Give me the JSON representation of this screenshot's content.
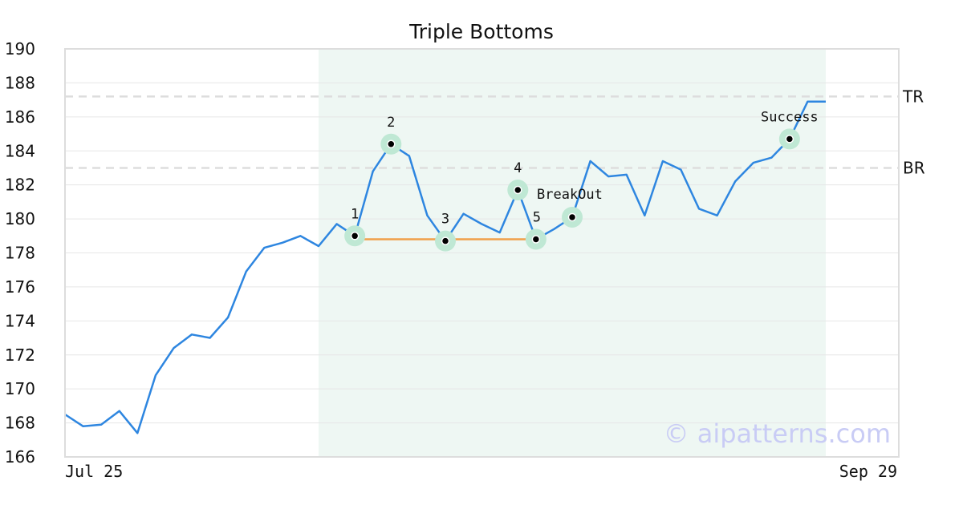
{
  "watermark": "© aipatterns.com",
  "colors": {
    "price_line": "#2e86e0",
    "pattern_shade": "#eef7f3",
    "neckline": "#f0a04a",
    "marker_halo": "#bfe8d4",
    "level_line": "#dddddd",
    "grid": "#e6e6e6",
    "frame": "#dddddd"
  },
  "chart_data": {
    "type": "line",
    "title": "Triple Bottoms",
    "xlabel": "",
    "ylabel": "",
    "x_tick_labels": [
      "Jul 25",
      "Sep 29"
    ],
    "ylim": [
      166,
      190
    ],
    "yticks": [
      166,
      168,
      170,
      172,
      174,
      176,
      178,
      180,
      182,
      184,
      186,
      188,
      190
    ],
    "grid": true,
    "series": [
      {
        "values": [
          168.5,
          167.8,
          167.9,
          168.7,
          167.4,
          170.8,
          172.4,
          173.2,
          173.0,
          174.2,
          176.9,
          178.3,
          178.6,
          179.0,
          178.4,
          179.7,
          179.0,
          182.8,
          184.4,
          183.7,
          180.2,
          178.7,
          180.3,
          179.7,
          179.2,
          181.7,
          178.8,
          179.4,
          180.1,
          183.4,
          182.5,
          182.6,
          180.2,
          183.4,
          182.9,
          180.6,
          180.2,
          182.2,
          183.3,
          183.6,
          184.7,
          186.9,
          186.9
        ]
      }
    ],
    "pattern_region_index": [
      14,
      42
    ],
    "levels": [
      {
        "label": "TR",
        "value": 187.2
      },
      {
        "label": "BR",
        "value": 183.0
      }
    ],
    "neckline": {
      "from_index": 16,
      "to_index": 26,
      "value": 178.8
    },
    "markers": [
      {
        "index": 16,
        "value": 179.0,
        "label": "1"
      },
      {
        "index": 18,
        "value": 184.4,
        "label": "2"
      },
      {
        "index": 21,
        "value": 178.7,
        "label": "3"
      },
      {
        "index": 25,
        "value": 181.7,
        "label": "4"
      },
      {
        "index": 26,
        "value": 178.8,
        "label": "5"
      },
      {
        "index": 28,
        "value": 180.1,
        "label": "BreakOut"
      },
      {
        "index": 40,
        "value": 184.7,
        "label": "Success"
      }
    ]
  }
}
